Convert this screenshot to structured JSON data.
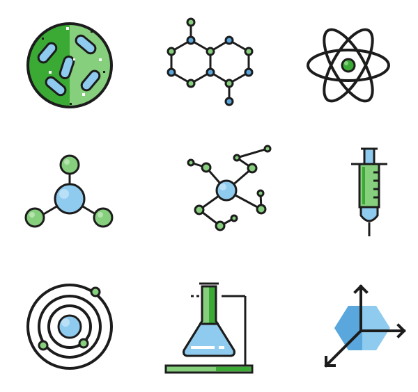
{
  "colors": {
    "outline": "#1c1c1c",
    "green_dark": "#3aaa35",
    "green_light": "#86cf7d",
    "blue_light": "#8fcbee",
    "blue_mid": "#5aa7dd",
    "white": "#ffffff"
  },
  "icons": [
    "bacteria-icon",
    "molecule-structure-icon",
    "atom-icon",
    "molecule-bonds-icon",
    "molecule-network-icon",
    "syringe-icon",
    "orbit-icon",
    "flask-stand-icon",
    "3d-axis-cube-icon"
  ]
}
